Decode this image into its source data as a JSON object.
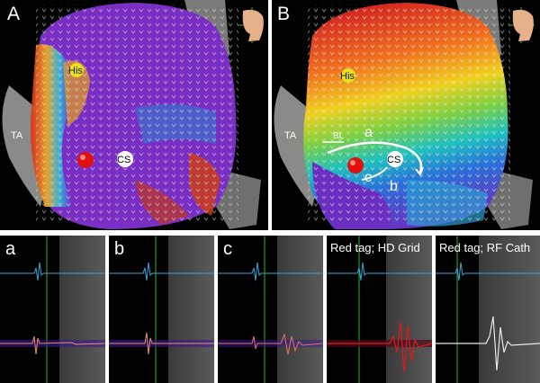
{
  "top_panels": [
    {
      "label": "A",
      "annotations": {
        "his": "His",
        "ta": "TA",
        "cs": "CS"
      }
    },
    {
      "label": "B",
      "annotations": {
        "his": "His",
        "ta": "TA",
        "cs": "CS",
        "bl": "BL",
        "a": "a",
        "b": "b",
        "c": "c"
      }
    }
  ],
  "strips": [
    {
      "label": "a"
    },
    {
      "label": "b"
    },
    {
      "label": "c"
    },
    {
      "label": "Red tag; HD Grid"
    },
    {
      "label": "Red tag; RF Cath"
    }
  ],
  "colors": {
    "background": "#000000",
    "blue_trace": "#35a6d8",
    "marker_line": "#28b828",
    "ablation_tag": "#e01010",
    "purple_tissue": "#7a2fc4"
  }
}
